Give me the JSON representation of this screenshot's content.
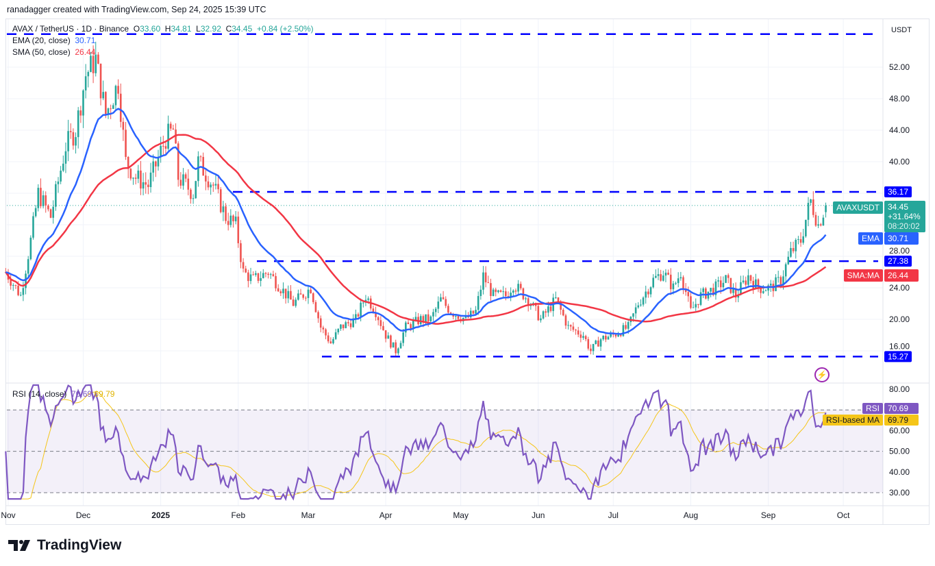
{
  "credit": "ranadagger created with TradingView.com, Sep 24, 2025 15:39 UTC",
  "legend": {
    "symbol": "AVAX / TetherUS · 1D · Binance",
    "o_label": "O",
    "o": "33.60",
    "h_label": "H",
    "h": "34.81",
    "l_label": "L",
    "l": "32.92",
    "c_label": "C",
    "c": "34.45",
    "change": "+0.84 (+2.50%)",
    "ema_label": "EMA (20, close)",
    "ema_value": "30.71",
    "sma_label": "SMA (50, close)",
    "sma_value": "26.44",
    "rsi_label": "RSI (14, close)",
    "rsi_value": "70.69",
    "rsi_ma_value": "69.79"
  },
  "price_axis": {
    "currency": "USDT"
  },
  "tags": {
    "symbol": "AVAXUSDT",
    "price": "34.45",
    "pct": "+31.64%",
    "countdown": "08:20:02",
    "ema": "EMA",
    "ema_value": "30.71",
    "sma": "SMA:MA",
    "sma_value": "26.44",
    "rsi": "RSI",
    "rsi_value": "70.69",
    "rsi_ma": "RSI-based MA",
    "rsi_ma_value": "69.79"
  },
  "brand": "TradingView",
  "colors": {
    "up": "#26a69a",
    "down": "#ef5350",
    "ema": "#2962ff",
    "sma": "#f23645",
    "levels": "#0000ff",
    "rsi": "#7e57c2",
    "rsi_ma": "#f5c518"
  },
  "chart_data": [
    {
      "type": "candlestick",
      "symbol": "AVAXUSDT",
      "ylim": [
        14,
        57
      ],
      "ytick_labels": [
        "16.00",
        "20.00",
        "24.00",
        "28.00",
        "40.00",
        "44.00",
        "48.00",
        "52.00"
      ],
      "yticks": [
        16,
        20,
        24,
        28,
        32,
        36,
        40,
        44,
        48,
        52
      ],
      "xtick_labels": [
        "Nov",
        "Dec",
        "2025",
        "Feb",
        "Mar",
        "Apr",
        "May",
        "Jun",
        "Jul",
        "Aug",
        "Sep",
        "Oct"
      ],
      "xtick_dates": [
        "2024-11-01",
        "2024-12-01",
        "2025-01-01",
        "2025-02-01",
        "2025-03-01",
        "2025-04-01",
        "2025-05-01",
        "2025-06-01",
        "2025-07-01",
        "2025-08-01",
        "2025-09-01",
        "2025-10-01"
      ],
      "approx_close": [
        [
          "2024-10-31",
          26
        ],
        [
          "2024-11-06",
          23
        ],
        [
          "2024-11-10",
          30
        ],
        [
          "2024-11-13",
          36
        ],
        [
          "2024-11-18",
          33
        ],
        [
          "2024-11-24",
          42
        ],
        [
          "2024-11-28",
          44
        ],
        [
          "2024-12-02",
          51
        ],
        [
          "2024-12-06",
          53
        ],
        [
          "2024-12-10",
          46
        ],
        [
          "2024-12-15",
          50
        ],
        [
          "2024-12-18",
          40
        ],
        [
          "2024-12-22",
          38
        ],
        [
          "2024-12-27",
          37
        ],
        [
          "2025-01-03",
          43
        ],
        [
          "2025-01-06",
          44
        ],
        [
          "2025-01-08",
          38
        ],
        [
          "2025-01-14",
          36
        ],
        [
          "2025-01-16",
          40
        ],
        [
          "2025-01-22",
          37
        ],
        [
          "2025-01-27",
          33
        ],
        [
          "2025-01-31",
          32
        ],
        [
          "2025-02-03",
          26
        ],
        [
          "2025-02-07",
          25
        ],
        [
          "2025-02-13",
          26
        ],
        [
          "2025-02-18",
          24
        ],
        [
          "2025-02-23",
          22
        ],
        [
          "2025-03-02",
          24
        ],
        [
          "2025-03-06",
          19
        ],
        [
          "2025-03-10",
          17
        ],
        [
          "2025-03-14",
          19
        ],
        [
          "2025-03-20",
          20
        ],
        [
          "2025-03-24",
          23
        ],
        [
          "2025-03-28",
          21
        ],
        [
          "2025-04-01",
          18
        ],
        [
          "2025-04-05",
          16
        ],
        [
          "2025-04-09",
          19
        ],
        [
          "2025-04-15",
          20
        ],
        [
          "2025-04-19",
          20
        ],
        [
          "2025-04-23",
          22.5
        ],
        [
          "2025-04-27",
          21
        ],
        [
          "2025-05-03",
          20
        ],
        [
          "2025-05-07",
          21
        ],
        [
          "2025-05-10",
          25.5
        ],
        [
          "2025-05-14",
          23
        ],
        [
          "2025-05-19",
          23
        ],
        [
          "2025-05-22",
          24.5
        ],
        [
          "2025-05-28",
          22.5
        ],
        [
          "2025-06-02",
          20
        ],
        [
          "2025-06-08",
          22.5
        ],
        [
          "2025-06-13",
          19
        ],
        [
          "2025-06-19",
          18
        ],
        [
          "2025-06-22",
          16
        ],
        [
          "2025-06-26",
          17.5
        ],
        [
          "2025-07-01",
          18
        ],
        [
          "2025-07-07",
          19
        ],
        [
          "2025-07-11",
          22
        ],
        [
          "2025-07-17",
          25
        ],
        [
          "2025-07-21",
          26
        ],
        [
          "2025-07-25",
          24
        ],
        [
          "2025-07-28",
          26
        ],
        [
          "2025-08-01",
          21
        ],
        [
          "2025-08-05",
          23
        ],
        [
          "2025-08-11",
          24
        ],
        [
          "2025-08-15",
          25
        ],
        [
          "2025-08-19",
          23
        ],
        [
          "2025-08-24",
          25.5
        ],
        [
          "2025-08-28",
          24
        ],
        [
          "2025-09-02",
          24
        ],
        [
          "2025-09-06",
          25
        ],
        [
          "2025-09-10",
          28.5
        ],
        [
          "2025-09-14",
          30
        ],
        [
          "2025-09-17",
          34
        ],
        [
          "2025-09-18",
          35
        ],
        [
          "2025-09-21",
          32
        ],
        [
          "2025-09-24",
          34.45
        ]
      ],
      "last_candle": {
        "open": 33.6,
        "high": 34.81,
        "low": 32.92,
        "close": 34.45
      },
      "indicators": [
        {
          "name": "EMA (20, close)",
          "last": 30.71
        },
        {
          "name": "SMA (50, close)",
          "last": 26.44
        }
      ],
      "horizontal_levels": [
        56.2,
        36.17,
        27.38,
        15.27
      ],
      "level_labels": [
        "",
        "36.17",
        "27.38",
        "15.27"
      ]
    },
    {
      "type": "line",
      "title": "RSI (14, close)",
      "ylim": [
        26,
        82
      ],
      "yticks": [
        30,
        40,
        50,
        60,
        80
      ],
      "ytick_labels": [
        "30.00",
        "40.00",
        "50.00",
        "60.00",
        "80.00"
      ],
      "bands": [
        30,
        50,
        70
      ],
      "series": [
        {
          "name": "RSI",
          "last": 70.69
        },
        {
          "name": "RSI-based MA",
          "last": 69.79
        }
      ]
    }
  ]
}
